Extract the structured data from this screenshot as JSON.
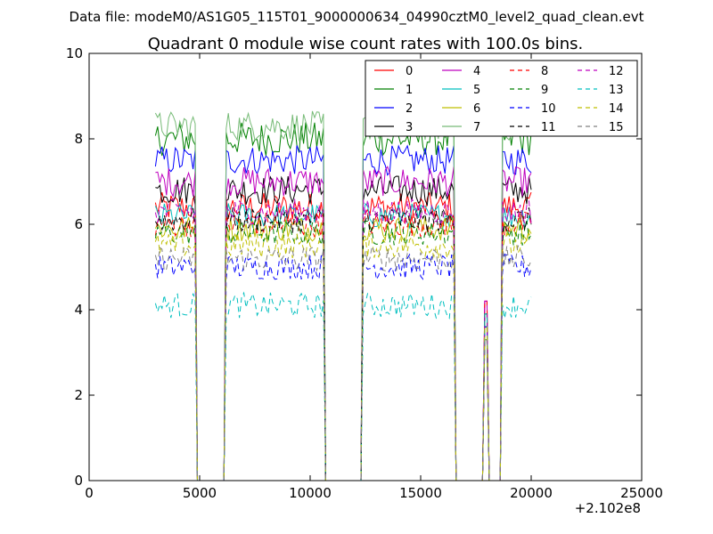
{
  "chart_data": {
    "type": "line",
    "suptitle": "Data file: modeM0/AS1G05_115T01_9000000634_04990cztM0_level2_quad_clean.evt",
    "title": "Quadrant 0 module wise count rates with 100.0s bins.",
    "xlabel": "",
    "ylabel": "",
    "x_offset_label": "+2.102e8",
    "xlim": [
      0,
      25000
    ],
    "ylim": [
      0,
      10
    ],
    "x_ticks": [
      0,
      5000,
      10000,
      15000,
      20000,
      25000
    ],
    "y_ticks": [
      0,
      2,
      4,
      6,
      8,
      10
    ],
    "grid": false,
    "legend_position": "top-right",
    "legend_columns": 4,
    "x_step": 100,
    "segments": [
      [
        3000,
        4800
      ],
      [
        6200,
        10600
      ],
      [
        12400,
        16500
      ],
      [
        17900,
        18000
      ],
      [
        18700,
        20000
      ]
    ],
    "zero_ranges": [
      [
        4900,
        6100
      ],
      [
        10700,
        12300
      ],
      [
        16600,
        17800
      ],
      [
        18100,
        18600
      ]
    ],
    "series": [
      {
        "name": "0",
        "color": "#ff0000",
        "dash": "solid",
        "mean": 6.4,
        "spread": 0.35
      },
      {
        "name": "1",
        "color": "#008000",
        "dash": "solid",
        "mean": 8.0,
        "spread": 0.4
      },
      {
        "name": "2",
        "color": "#0000ff",
        "dash": "solid",
        "mean": 7.5,
        "spread": 0.35
      },
      {
        "name": "3",
        "color": "#000000",
        "dash": "solid",
        "mean": 6.8,
        "spread": 0.35
      },
      {
        "name": "4",
        "color": "#bf00bf",
        "dash": "solid",
        "mean": 7.0,
        "spread": 0.35
      },
      {
        "name": "5",
        "color": "#00bfbf",
        "dash": "solid",
        "mean": 6.2,
        "spread": 0.3
      },
      {
        "name": "6",
        "color": "#bfbf00",
        "dash": "solid",
        "mean": 5.9,
        "spread": 0.3
      },
      {
        "name": "7",
        "color": "#77bb77",
        "dash": "solid",
        "mean": 8.3,
        "spread": 0.35
      },
      {
        "name": "8",
        "color": "#ff0000",
        "dash": "dashed",
        "mean": 6.0,
        "spread": 0.3
      },
      {
        "name": "9",
        "color": "#008000",
        "dash": "dashed",
        "mean": 5.8,
        "spread": 0.3
      },
      {
        "name": "10",
        "color": "#0000ff",
        "dash": "dashed",
        "mean": 5.0,
        "spread": 0.3
      },
      {
        "name": "11",
        "color": "#000000",
        "dash": "dashed",
        "mean": 6.1,
        "spread": 0.3
      },
      {
        "name": "12",
        "color": "#bf00bf",
        "dash": "dashed",
        "mean": 6.3,
        "spread": 0.3
      },
      {
        "name": "13",
        "color": "#00bfbf",
        "dash": "dashed",
        "mean": 4.1,
        "spread": 0.3
      },
      {
        "name": "14",
        "color": "#bfbf00",
        "dash": "dashed",
        "mean": 5.5,
        "spread": 0.3
      },
      {
        "name": "15",
        "color": "#808080",
        "dash": "dashed",
        "mean": 5.2,
        "spread": 0.3
      }
    ]
  }
}
